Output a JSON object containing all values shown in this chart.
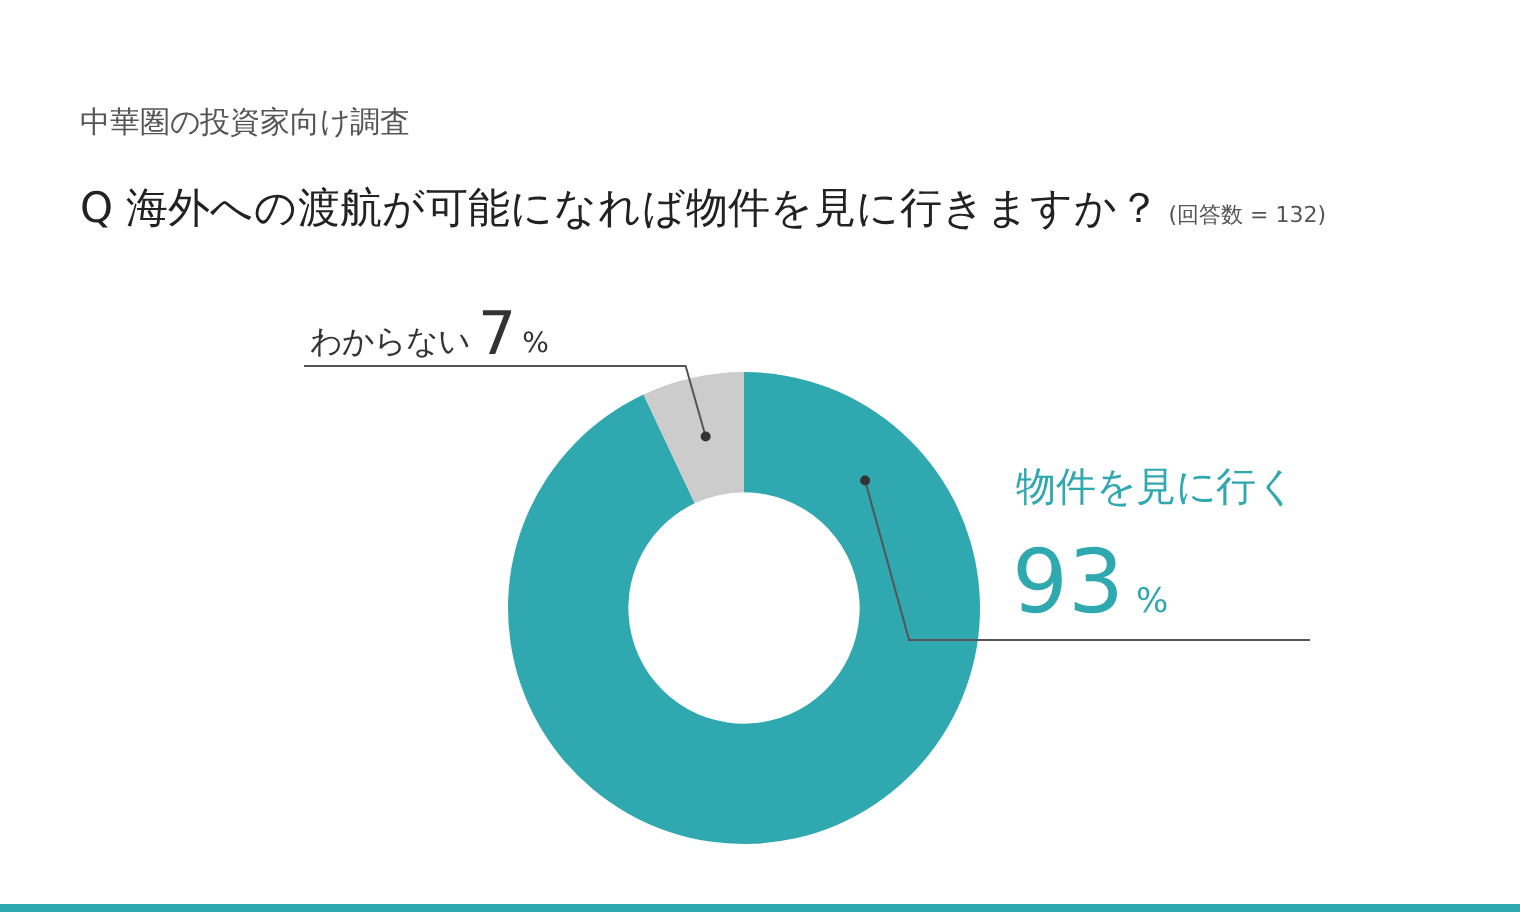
{
  "chart_data": {
    "type": "donut",
    "subtitle": "中華圏の投資家向け調査",
    "title": "Q 海外への渡航が可能になれば物件を見に行きますか？",
    "annotations": [
      "(回答数 = 132)"
    ],
    "categories": [
      "物件を見に行く",
      "わからない"
    ],
    "values": [
      93,
      7
    ],
    "colors": [
      "#2fa8b0",
      "#cccccc"
    ],
    "value_labels": [
      "93%",
      "7%"
    ],
    "legend": false
  }
}
